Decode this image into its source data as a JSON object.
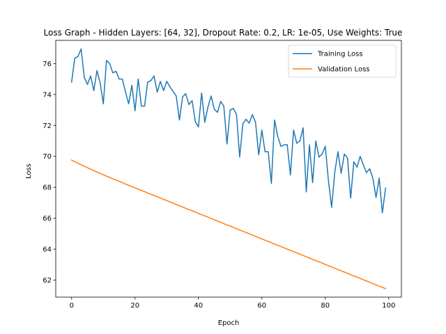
{
  "chart_data": {
    "type": "line",
    "title": "Loss Graph - Hidden Layers: [64, 32], Dropout Rate: 0.2, LR: 1e-05, Use Weights: True",
    "xlabel": "Epoch",
    "ylabel": "Loss",
    "xlim": [
      -5,
      104
    ],
    "ylim": [
      60.9,
      77.5
    ],
    "xticks": [
      0,
      20,
      40,
      60,
      80,
      100
    ],
    "yticks": [
      62,
      64,
      66,
      68,
      70,
      72,
      74,
      76
    ],
    "grid": false,
    "legend_position": "top-right",
    "x": [
      0,
      1,
      2,
      3,
      4,
      5,
      6,
      7,
      8,
      9,
      10,
      11,
      12,
      13,
      14,
      15,
      16,
      17,
      18,
      19,
      20,
      21,
      22,
      23,
      24,
      25,
      26,
      27,
      28,
      29,
      30,
      31,
      32,
      33,
      34,
      35,
      36,
      37,
      38,
      39,
      40,
      41,
      42,
      43,
      44,
      45,
      46,
      47,
      48,
      49,
      50,
      51,
      52,
      53,
      54,
      55,
      56,
      57,
      58,
      59,
      60,
      61,
      62,
      63,
      64,
      65,
      66,
      67,
      68,
      69,
      70,
      71,
      72,
      73,
      74,
      75,
      76,
      77,
      78,
      79,
      80,
      81,
      82,
      83,
      84,
      85,
      86,
      87,
      88,
      89,
      90,
      91,
      92,
      93,
      94,
      95,
      96,
      97,
      98,
      99
    ],
    "series": [
      {
        "name": "Training Loss",
        "color": "#1f77b4",
        "values": [
          74.8,
          76.35,
          76.45,
          76.95,
          75.1,
          74.65,
          75.2,
          74.25,
          75.55,
          74.75,
          73.4,
          76.2,
          76.0,
          75.4,
          75.5,
          75.0,
          75.0,
          74.15,
          73.4,
          74.6,
          72.95,
          75.0,
          73.25,
          73.25,
          74.8,
          74.9,
          75.2,
          74.15,
          74.85,
          74.25,
          74.85,
          74.5,
          74.2,
          73.9,
          72.35,
          73.85,
          74.05,
          73.35,
          73.6,
          72.25,
          71.9,
          74.1,
          72.2,
          73.2,
          73.9,
          73.05,
          72.85,
          73.55,
          73.25,
          70.8,
          73.0,
          73.1,
          72.7,
          69.95,
          72.1,
          72.4,
          72.15,
          72.7,
          72.2,
          70.1,
          71.7,
          70.3,
          70.3,
          68.25,
          72.35,
          71.3,
          70.65,
          70.75,
          70.75,
          68.8,
          71.7,
          70.85,
          71.0,
          71.85,
          67.7,
          70.75,
          68.3,
          71.0,
          69.95,
          70.15,
          70.65,
          68.4,
          66.7,
          69.0,
          70.3,
          68.9,
          70.15,
          69.9,
          67.3,
          69.65,
          69.3,
          70.0,
          69.45,
          68.95,
          69.2,
          68.6,
          67.35,
          68.6,
          66.35,
          67.95
        ]
      },
      {
        "name": "Validation Loss",
        "color": "#ff7f0e",
        "values": [
          69.76,
          69.66,
          69.56,
          69.46,
          69.36,
          69.27,
          69.17,
          69.08,
          68.99,
          68.9,
          68.81,
          68.72,
          68.64,
          68.55,
          68.47,
          68.38,
          68.3,
          68.21,
          68.13,
          68.05,
          67.96,
          67.88,
          67.8,
          67.72,
          67.63,
          67.55,
          67.47,
          67.39,
          67.3,
          67.22,
          67.14,
          67.06,
          66.97,
          66.89,
          66.81,
          66.73,
          66.64,
          66.56,
          66.48,
          66.4,
          66.31,
          66.23,
          66.15,
          66.07,
          65.98,
          65.9,
          65.82,
          65.74,
          65.65,
          65.57,
          65.49,
          65.41,
          65.32,
          65.24,
          65.16,
          65.08,
          64.99,
          64.91,
          64.83,
          64.75,
          64.66,
          64.58,
          64.5,
          64.42,
          64.33,
          64.25,
          64.17,
          64.09,
          64.0,
          63.92,
          63.84,
          63.76,
          63.67,
          63.59,
          63.51,
          63.43,
          63.34,
          63.26,
          63.18,
          63.1,
          63.01,
          62.93,
          62.85,
          62.77,
          62.68,
          62.6,
          62.52,
          62.44,
          62.35,
          62.27,
          62.19,
          62.11,
          62.02,
          61.94,
          61.86,
          61.78,
          61.69,
          61.61,
          61.53,
          61.45
        ]
      }
    ]
  }
}
